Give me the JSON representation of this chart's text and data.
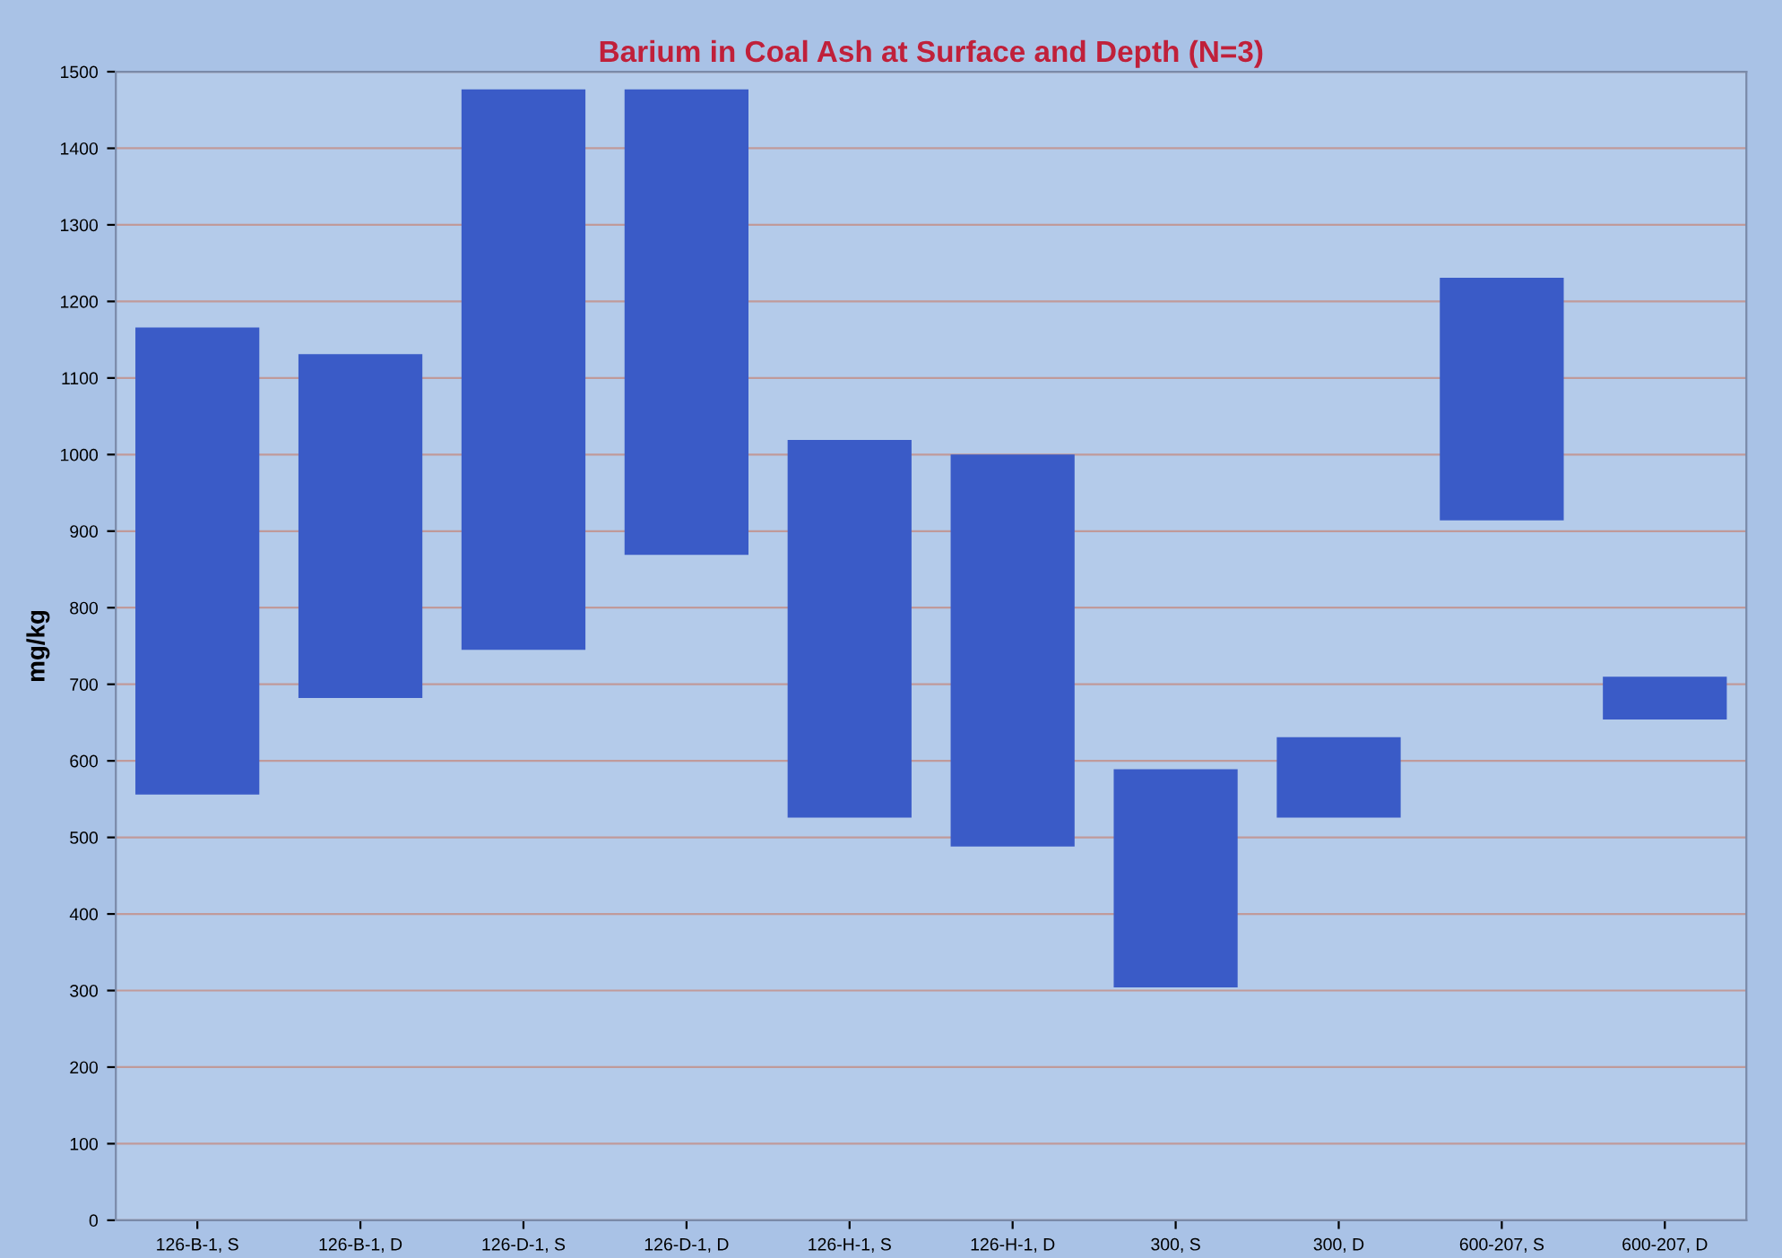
{
  "chart_data": {
    "type": "bar",
    "title": "Barium in Coal Ash at Surface and Depth (N=3)",
    "ylabel": "mg/kg",
    "categories": [
      "126-B-1, S",
      "126-B-1, D",
      "126-D-1, S",
      "126-D-1, D",
      "126-H-1, S",
      "126-H-1, D",
      "300, S",
      "300, D",
      "600-207, S",
      "600-207, D"
    ],
    "base": [
      556,
      682,
      745,
      869,
      526,
      488,
      304,
      526,
      914,
      654
    ],
    "values": [
      610,
      449,
      732,
      608,
      493,
      512,
      285,
      105,
      317,
      56
    ],
    "color": "#3a5bc7",
    "ylim": [
      0,
      1500
    ],
    "yticks": [
      0,
      100,
      200,
      300,
      400,
      500,
      600,
      700,
      800,
      900,
      1000,
      1100,
      1200,
      1300,
      1400,
      1500
    ],
    "grid": "y",
    "legend": false
  }
}
